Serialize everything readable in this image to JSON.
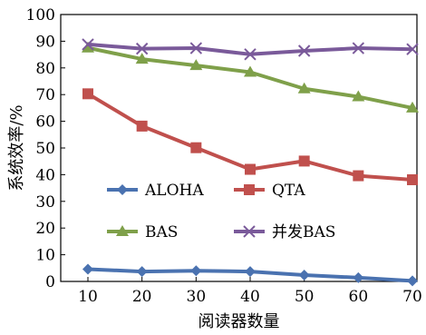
{
  "chart_data": {
    "type": "line",
    "title": "",
    "xlabel": "阅读器数量",
    "ylabel": "系统效率/%",
    "xlim": [
      10,
      70
    ],
    "ylim": [
      0,
      100
    ],
    "x": [
      10,
      20,
      30,
      40,
      50,
      60,
      70
    ],
    "xticks": [
      10,
      20,
      30,
      40,
      50,
      60,
      70
    ],
    "yticks": [
      0,
      10,
      20,
      30,
      40,
      50,
      60,
      70,
      80,
      90,
      100
    ],
    "grid": false,
    "legend": {
      "placement": "center",
      "columns": 2
    },
    "series": [
      {
        "name": "ALOHA",
        "color": "#4A72B0",
        "marker": "diamond",
        "values": [
          4.6,
          3.7,
          4.0,
          3.7,
          2.4,
          1.4,
          0.2
        ]
      },
      {
        "name": "QTA",
        "color": "#C0504D",
        "marker": "square",
        "values": [
          70.3,
          58.2,
          50.1,
          42.0,
          45.1,
          39.6,
          38.1
        ]
      },
      {
        "name": "BAS",
        "color": "#7FA04A",
        "marker": "triangle",
        "values": [
          87.5,
          83.3,
          80.9,
          78.4,
          72.2,
          69.2,
          65.0
        ]
      },
      {
        "name": "并发BAS",
        "color": "#7A5A9A",
        "marker": "x",
        "values": [
          88.8,
          87.2,
          87.4,
          85.1,
          86.4,
          87.4,
          87.0
        ]
      }
    ]
  }
}
